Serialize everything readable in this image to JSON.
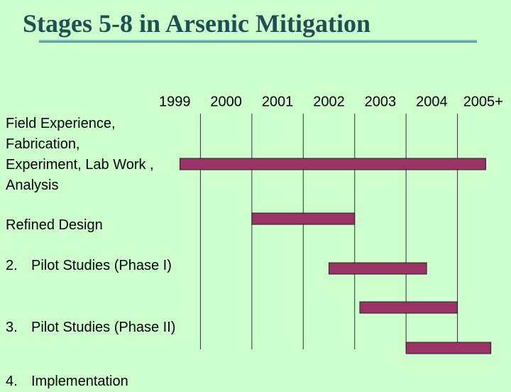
{
  "chart_data": {
    "type": "gantt",
    "title": "Stages 5-8 in Arsenic Mitigation",
    "xlim": [
      1998,
      2005
    ],
    "xticks": [
      1999,
      2000,
      2001,
      2002,
      2003,
      2004,
      {
        "value": 2005,
        "label": "2005+"
      }
    ],
    "grid": true,
    "color": "#993366",
    "tasks": [
      {
        "label": "Field Experience, Fabrication, Experiment, Lab Work , Analysis",
        "start": 1998.6,
        "end": 2004.55
      },
      {
        "label": "Refined Design",
        "start": 2000,
        "end": 2002
      },
      {
        "number": "2.",
        "label": "Pilot Studies  (Phase I)",
        "start": 2001.5,
        "end": 2003.4
      },
      {
        "number": "3.",
        "label": "Pilot Studies (Phase II)",
        "start": 2002.1,
        "end": 2004
      },
      {
        "number": "4.",
        "label": "Implementation",
        "start": 2003,
        "end": 2004.65
      }
    ]
  }
}
